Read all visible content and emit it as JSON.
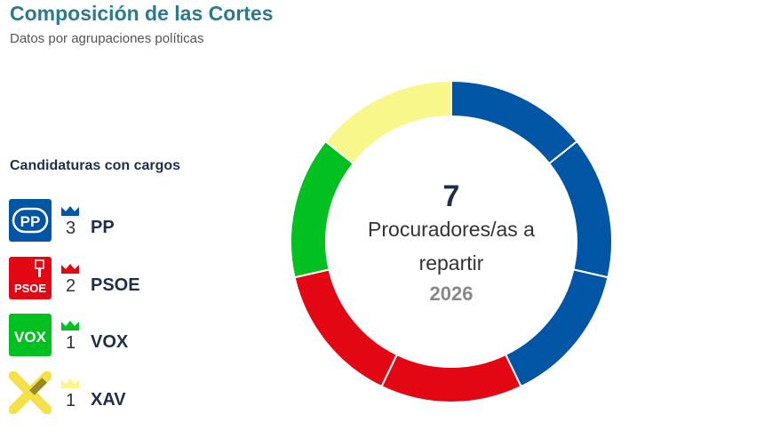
{
  "header": {
    "title": "Composición de las Cortes",
    "subtitle": "Datos por agrupaciones políticas"
  },
  "legend": {
    "title": "Candidaturas con cargos",
    "parties": [
      {
        "name": "PP",
        "seats": "3",
        "color": "#0055a4",
        "logo_text": "PP",
        "icon": "pp-logo-icon"
      },
      {
        "name": "PSOE",
        "seats": "2",
        "color": "#e30613",
        "logo_text": "PSOE",
        "icon": "psoe-logo-icon"
      },
      {
        "name": "VOX",
        "seats": "1",
        "color": "#00c11f",
        "logo_text": "VOX",
        "icon": "vox-logo-icon"
      },
      {
        "name": "XAV",
        "seats": "1",
        "color": "#f8f88a",
        "logo_text": "",
        "icon": "xav-logo-icon"
      }
    ]
  },
  "chart_data": {
    "type": "pie",
    "style": "donut",
    "center": {
      "total": "7",
      "label_line1": "Procuradores/as a",
      "label_line2": "repartir",
      "year": "2026"
    },
    "categories": [
      "PP",
      "PSOE",
      "VOX",
      "XAV"
    ],
    "values": [
      3,
      2,
      1,
      1
    ],
    "seat_colors": [
      "#0055a4",
      "#0055a4",
      "#0055a4",
      "#e30613",
      "#e30613",
      "#00c11f",
      "#f8f88a"
    ]
  }
}
